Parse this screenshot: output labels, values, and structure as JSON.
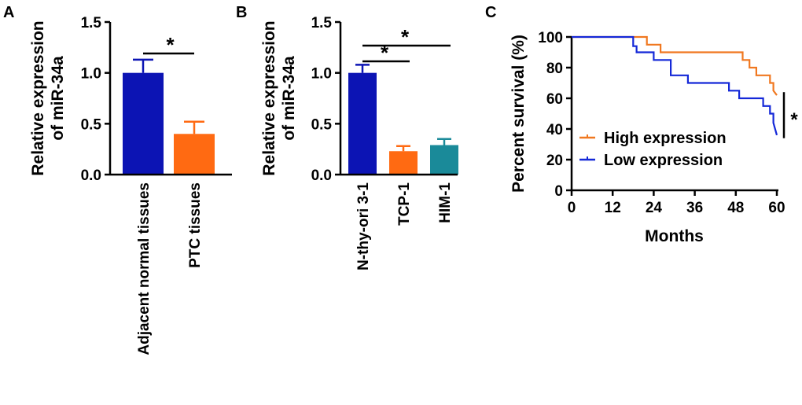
{
  "chart_data": [
    {
      "panel": "A",
      "type": "bar",
      "ylabel_line1": "Relative expression",
      "ylabel_line2": "of miR-34a",
      "yticks": [
        "0.0",
        "0.5",
        "1.0",
        "1.5"
      ],
      "ylim": [
        0,
        1.5
      ],
      "categories": [
        "Adjacent normal tissues",
        "PTC tissues"
      ],
      "values": [
        1.0,
        0.4
      ],
      "errors": [
        0.13,
        0.12
      ],
      "colors": [
        "#0c14b4",
        "#ff6a12"
      ],
      "significance": [
        {
          "from": 0,
          "to": 1,
          "label": "*"
        }
      ]
    },
    {
      "panel": "B",
      "type": "bar",
      "ylabel_line1": "Relative expression",
      "ylabel_line2": "of miR-34a",
      "yticks": [
        "0.0",
        "0.5",
        "1.0",
        "1.5"
      ],
      "ylim": [
        0,
        1.5
      ],
      "categories": [
        "N-thy-ori 3-1",
        "TCP-1",
        "HIM-1"
      ],
      "values": [
        1.0,
        0.23,
        0.29
      ],
      "errors": [
        0.08,
        0.05,
        0.06
      ],
      "colors": [
        "#0c14b4",
        "#ff6a12",
        "#1a8a99"
      ],
      "significance": [
        {
          "from": 0,
          "to": 1,
          "label": "*"
        },
        {
          "from": 0,
          "to": 2,
          "label": "*"
        }
      ]
    },
    {
      "panel": "C",
      "type": "line",
      "subtype": "kaplan-meier",
      "xlabel": "Months",
      "ylabel": "Percent survival (%)",
      "xticks": [
        "0",
        "12",
        "24",
        "36",
        "48",
        "60"
      ],
      "yticks": [
        "0",
        "20",
        "40",
        "60",
        "80",
        "100"
      ],
      "xlim": [
        0,
        60
      ],
      "ylim": [
        0,
        100
      ],
      "series": [
        {
          "name": "High expression",
          "color": "#f07820",
          "x": [
            0,
            20,
            22,
            22,
            26,
            26,
            50,
            50,
            52,
            52,
            54,
            54,
            58,
            58,
            59,
            59,
            60
          ],
          "y": [
            100,
            100,
            100,
            95,
            95,
            90,
            90,
            85,
            85,
            80,
            80,
            75,
            75,
            70,
            70,
            65,
            62
          ]
        },
        {
          "name": "Low expression",
          "color": "#1428d8",
          "x": [
            0,
            18,
            18,
            19,
            19,
            24,
            24,
            29,
            29,
            34,
            34,
            46,
            46,
            49,
            49,
            56,
            56,
            58,
            58,
            59,
            59,
            60
          ],
          "y": [
            100,
            100,
            94,
            94,
            90,
            90,
            85,
            85,
            75,
            75,
            70,
            70,
            65,
            65,
            60,
            60,
            55,
            55,
            50,
            50,
            44,
            36
          ]
        }
      ],
      "significance_label": "*"
    }
  ]
}
